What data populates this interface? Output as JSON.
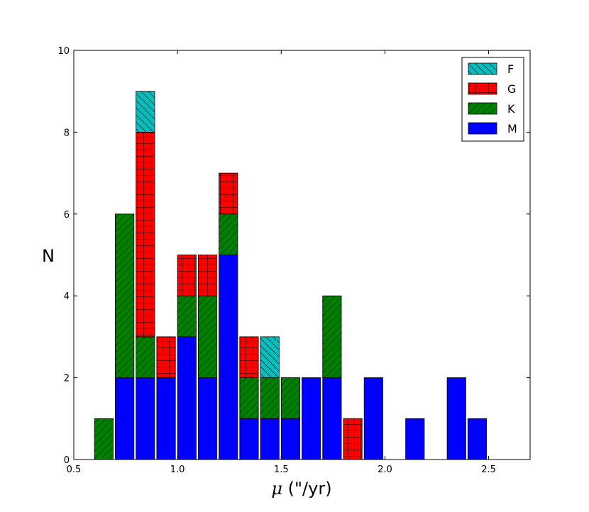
{
  "chart_data": {
    "type": "bar",
    "stacked": true,
    "xlabel_symbol": "μ",
    "xlabel_units": " (\"/yr)",
    "ylabel": "N",
    "xlim": [
      0.5,
      2.7
    ],
    "ylim": [
      0,
      10
    ],
    "xticks": [
      0.5,
      1.0,
      1.5,
      2.0,
      2.5
    ],
    "xtick_labels": [
      "0.5",
      "1.0",
      "1.5",
      "2.0",
      "2.5"
    ],
    "yticks": [
      0,
      2,
      4,
      6,
      8,
      10
    ],
    "ytick_labels": [
      "0",
      "2",
      "4",
      "6",
      "8",
      "10"
    ],
    "bin_width": 0.1,
    "bin_left_edges": [
      0.6,
      0.7,
      0.8,
      0.9,
      1.0,
      1.1,
      1.2,
      1.3,
      1.4,
      1.5,
      1.6,
      1.7,
      1.8,
      1.9,
      2.0,
      2.1,
      2.2,
      2.3,
      2.4
    ],
    "stack_order": [
      "M",
      "K",
      "G",
      "F"
    ],
    "series": [
      {
        "name": "M",
        "color": "#0000ff",
        "hatch": "none",
        "values": [
          0,
          2,
          2,
          2,
          3,
          2,
          5,
          1,
          1,
          1,
          2,
          2,
          0,
          2,
          0,
          1,
          0,
          2,
          1
        ]
      },
      {
        "name": "K",
        "color": "#008000",
        "hatch": "diagonal",
        "values": [
          1,
          4,
          1,
          0,
          1,
          2,
          1,
          1,
          1,
          1,
          0,
          2,
          0,
          0,
          0,
          0,
          0,
          0,
          0
        ]
      },
      {
        "name": "G",
        "color": "#ff0000",
        "hatch": "grid",
        "values": [
          0,
          0,
          5,
          1,
          1,
          1,
          1,
          1,
          0,
          0,
          0,
          0,
          1,
          0,
          0,
          0,
          0,
          0,
          0
        ]
      },
      {
        "name": "F",
        "color": "#00bfbf",
        "hatch": "backdiagonal",
        "values": [
          0,
          0,
          1,
          0,
          0,
          0,
          0,
          0,
          1,
          0,
          0,
          0,
          0,
          0,
          0,
          0,
          0,
          0,
          0
        ]
      }
    ],
    "legend": {
      "position": "top-right",
      "entries": [
        "F",
        "G",
        "K",
        "M"
      ]
    },
    "grid": false
  }
}
